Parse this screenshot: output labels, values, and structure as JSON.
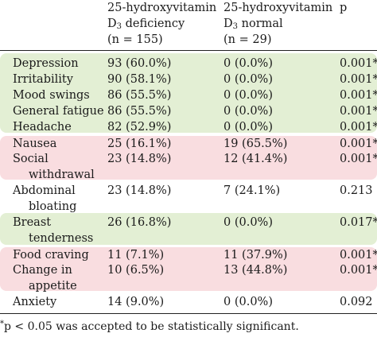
{
  "header": {
    "col2": {
      "line1": "25-hydroxyvitamin",
      "line2_prefix": "D",
      "line2_sub": "3",
      "line2_suffix": " deficiency",
      "line3": "(n = 155)"
    },
    "col3": {
      "line1": "25-hydroxyvitamin",
      "line2_prefix": "D",
      "line2_sub": "3",
      "line2_suffix": " normal",
      "line3": "(n = 29)"
    },
    "col4": {
      "line1": "p"
    }
  },
  "rows": [
    {
      "symptom": "Depression",
      "deficiency": "93 (60.0%)",
      "normal": "0 (0.0%)",
      "p": "0.001*"
    },
    {
      "symptom": "Irritability",
      "deficiency": "90 (58.1%)",
      "normal": "0 (0.0%)",
      "p": "0.001*"
    },
    {
      "symptom": "Mood swings",
      "deficiency": "86 (55.5%)",
      "normal": "0 (0.0%)",
      "p": "0.001*"
    },
    {
      "symptom": "General fatigue",
      "deficiency": "86 (55.5%)",
      "normal": "0 (0.0%)",
      "p": "0.001*"
    },
    {
      "symptom": "Headache",
      "deficiency": "82 (52.9%)",
      "normal": "0 (0.0%)",
      "p": "0.001*"
    },
    {
      "symptom": "Nausea",
      "deficiency": "25 (16.1%)",
      "normal": "19 (65.5%)",
      "p": "0.001*"
    },
    {
      "symptom": "Social",
      "symptom_cont": "withdrawal",
      "deficiency": "23 (14.8%)",
      "normal": "12 (41.4%)",
      "p": "0.001*"
    },
    {
      "symptom": "Abdominal",
      "symptom_cont": "bloating",
      "deficiency": "23 (14.8%)",
      "normal": "7 (24.1%)",
      "p": "0.213 ("
    },
    {
      "symptom": "Breast",
      "symptom_cont": "tenderness",
      "deficiency": "26 (16.8%)",
      "normal": "0 (0.0%)",
      "p": "0.017*"
    },
    {
      "symptom": "Food craving",
      "deficiency": "11 (7.1%)",
      "normal": "11 (37.9%)",
      "p": "0.001*"
    },
    {
      "symptom": "Change in",
      "symptom_cont": "appetite",
      "deficiency": "10 (6.5%)",
      "normal": "13 (44.8%)",
      "p": "0.001*"
    },
    {
      "symptom": "Anxiety",
      "deficiency": "14 (9.0%)",
      "normal": "0 (0.0%)",
      "p": "0.092 ("
    }
  ],
  "footnote": {
    "mark": "*",
    "text": "p < 0.05 was accepted to be statistically significant."
  },
  "colors": {
    "green_band": "#e3efd4",
    "pink_band": "#f9dde0"
  }
}
